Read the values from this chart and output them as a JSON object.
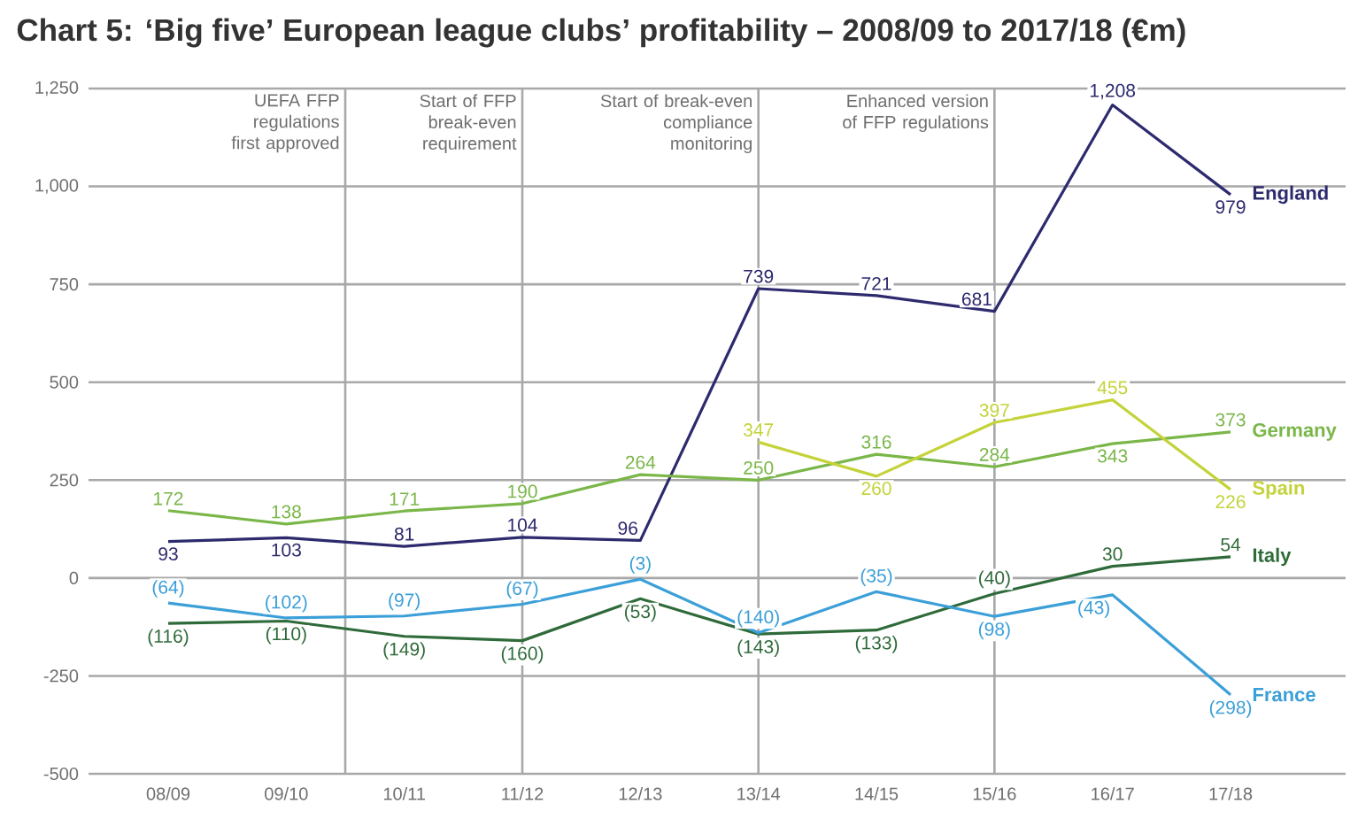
{
  "chart_data": {
    "type": "line",
    "title": "Chart 5: ‘Big five’ European league clubs’ profitability – 2008/09 to 2017/18 (€m)",
    "categories": [
      "08/09",
      "09/10",
      "10/11",
      "11/12",
      "12/13",
      "13/14",
      "14/15",
      "15/16",
      "16/17",
      "17/18"
    ],
    "series": [
      {
        "name": "England",
        "color": "#2d2a6e",
        "values": [
          93,
          103,
          81,
          104,
          96,
          739,
          721,
          681,
          1208,
          979
        ],
        "value_labels": [
          "93",
          "103",
          "81",
          "104",
          "96",
          "739",
          "721",
          "681",
          "1,208",
          "979"
        ]
      },
      {
        "name": "Germany",
        "color": "#7ab648",
        "values": [
          172,
          138,
          171,
          190,
          264,
          250,
          316,
          284,
          343,
          373
        ],
        "value_labels": [
          "172",
          "138",
          "171",
          "190",
          "264",
          "250",
          "316",
          "284",
          "343",
          "373"
        ]
      },
      {
        "name": "Spain",
        "color": "#c4d33a",
        "values": [
          null,
          null,
          null,
          null,
          null,
          347,
          260,
          397,
          455,
          226
        ],
        "value_labels": [
          null,
          null,
          null,
          null,
          null,
          "347",
          "260",
          "397",
          "455",
          "226"
        ]
      },
      {
        "name": "Italy",
        "color": "#2f6b3a",
        "values": [
          -116,
          -110,
          -149,
          -160,
          -53,
          -143,
          -133,
          -40,
          30,
          54
        ],
        "value_labels": [
          "(116)",
          "(110)",
          "(149)",
          "(160)",
          "(53)",
          "(143)",
          "(133)",
          "(40)",
          "30",
          "54"
        ]
      },
      {
        "name": "France",
        "color": "#3b9fd8",
        "values": [
          -64,
          -102,
          -97,
          -67,
          -3,
          -140,
          -35,
          -98,
          -43,
          -298
        ],
        "value_labels": [
          "(64)",
          "(102)",
          "(97)",
          "(67)",
          "(3)",
          "(140)",
          "(35)",
          "(98)",
          "(43)",
          "(298)"
        ]
      }
    ],
    "ylim": [
      -500,
      1250
    ],
    "yticks": [
      -500,
      -250,
      0,
      250,
      500,
      750,
      {
        "value": 1000,
        "label": "1,000"
      },
      {
        "value": 1250,
        "label": "1,250"
      }
    ],
    "grid": "y",
    "marker": "none",
    "line_style": "solid",
    "annotations": [
      "UEFA FFP regulations first approved"
    ],
    "ref_lines": [
      {
        "axis": "x",
        "value": "11/12",
        "label": "Start of FFP break-even requirement"
      },
      {
        "axis": "x",
        "value": "13/14",
        "label": "Start of break-even compliance monitoring"
      },
      {
        "axis": "x",
        "value": "15/16",
        "label": "Enhanced version of FFP regulations"
      }
    ]
  }
}
